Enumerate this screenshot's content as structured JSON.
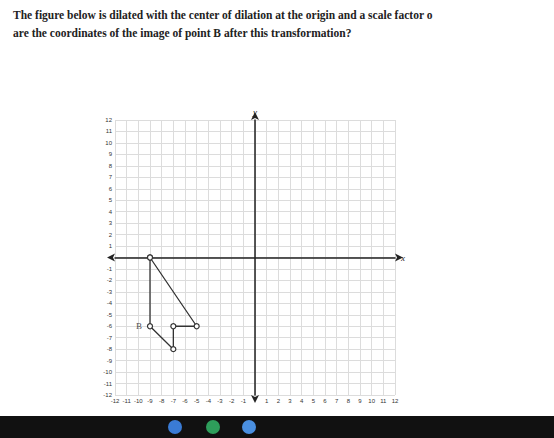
{
  "chart_data": {
    "type": "line",
    "title": "The figure below is dilated with the center of dilation at the origin and a scale factor o",
    "subtitle": "are the coordinates of the image of point B after this transformation?",
    "x_label": "x",
    "y_label": "y",
    "x": [
      -9,
      -5,
      -7,
      -7,
      -9,
      -9
    ],
    "values": [
      0,
      -6,
      -6,
      -8,
      -6,
      0
    ],
    "color": "#333333",
    "marker": "circle",
    "line_style": "solid",
    "annotations": [
      {
        "text": "B",
        "x": -9,
        "y": -6
      }
    ],
    "xlim": [
      -12,
      12
    ],
    "xticks": [
      -12,
      -11,
      -10,
      -9,
      -8,
      -7,
      -6,
      -5,
      -4,
      -3,
      -2,
      -1,
      1,
      2,
      3,
      4,
      5,
      6,
      7,
      8,
      9,
      10,
      11,
      12
    ],
    "ylim": [
      -12,
      12
    ],
    "yticks": [
      -12,
      -11,
      -10,
      -9,
      -8,
      -7,
      -6,
      -5,
      -4,
      -3,
      -2,
      -1,
      1,
      2,
      3,
      4,
      5,
      6,
      7,
      8,
      9,
      10,
      11,
      12
    ],
    "grid": true
  }
}
